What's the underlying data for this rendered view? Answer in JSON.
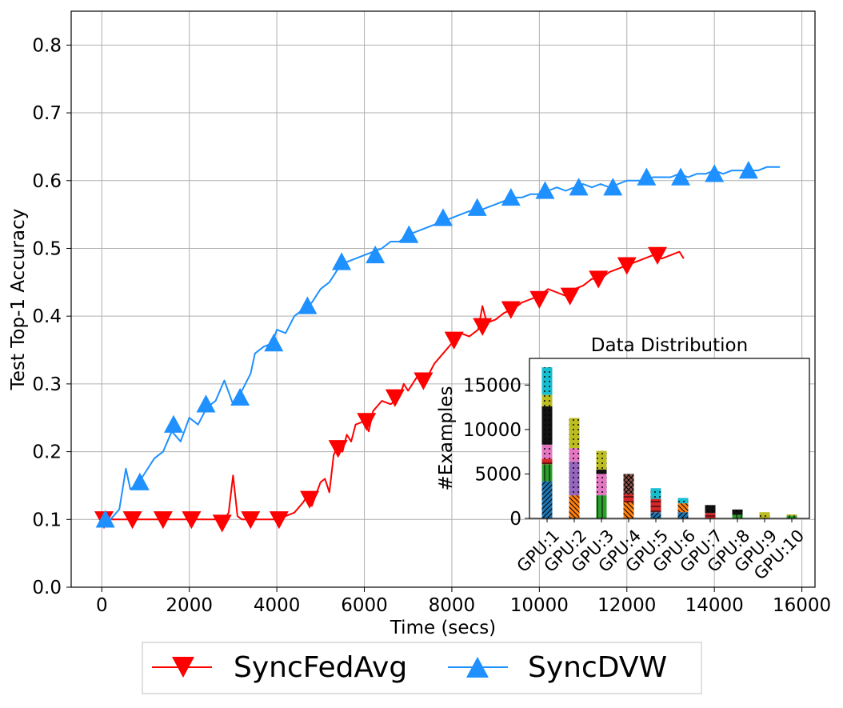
{
  "chart_data": [
    {
      "type": "line",
      "xlabel": "Time (secs)",
      "ylabel": "Test Top-1 Accuracy",
      "xlim": [
        -700,
        16300
      ],
      "ylim": [
        0.0,
        0.85
      ],
      "x_ticks": [
        0,
        2000,
        4000,
        6000,
        8000,
        10000,
        12000,
        14000,
        16000
      ],
      "x_tick_labels": [
        "0",
        "2000",
        "4000",
        "6000",
        "8000",
        "10000",
        "12000",
        "14000",
        "16000"
      ],
      "y_ticks": [
        0.0,
        0.1,
        0.2,
        0.3,
        0.4,
        0.5,
        0.6,
        0.7,
        0.8
      ],
      "y_tick_labels": [
        "0.0",
        "0.1",
        "0.2",
        "0.3",
        "0.4",
        "0.5",
        "0.6",
        "0.7",
        "0.8"
      ],
      "grid": true,
      "legend": {
        "placement": "bottom-center, outside plot"
      },
      "series": [
        {
          "name": "SyncFedAvg",
          "color": "#ff0000",
          "marker": "triangle-down",
          "line_points": [
            [
              0,
              0.1
            ],
            [
              200,
              0.1
            ],
            [
              400,
              0.1
            ],
            [
              600,
              0.1
            ],
            [
              800,
              0.1
            ],
            [
              1000,
              0.1
            ],
            [
              1200,
              0.1
            ],
            [
              1400,
              0.1
            ],
            [
              1600,
              0.1
            ],
            [
              1800,
              0.1
            ],
            [
              2000,
              0.1
            ],
            [
              2200,
              0.1
            ],
            [
              2400,
              0.1
            ],
            [
              2600,
              0.1
            ],
            [
              2800,
              0.1
            ],
            [
              2900,
              0.11
            ],
            [
              3000,
              0.165
            ],
            [
              3100,
              0.105
            ],
            [
              3200,
              0.1
            ],
            [
              3400,
              0.1
            ],
            [
              3600,
              0.1
            ],
            [
              3800,
              0.1
            ],
            [
              4000,
              0.1
            ],
            [
              4200,
              0.105
            ],
            [
              4400,
              0.11
            ],
            [
              4600,
              0.125
            ],
            [
              4700,
              0.135
            ],
            [
              4800,
              0.12
            ],
            [
              5000,
              0.155
            ],
            [
              5100,
              0.16
            ],
            [
              5200,
              0.14
            ],
            [
              5300,
              0.195
            ],
            [
              5400,
              0.21
            ],
            [
              5500,
              0.2
            ],
            [
              5600,
              0.225
            ],
            [
              5700,
              0.215
            ],
            [
              5800,
              0.24
            ],
            [
              6000,
              0.245
            ],
            [
              6100,
              0.23
            ],
            [
              6200,
              0.26
            ],
            [
              6400,
              0.275
            ],
            [
              6600,
              0.27
            ],
            [
              6800,
              0.28
            ],
            [
              6900,
              0.3
            ],
            [
              7000,
              0.29
            ],
            [
              7200,
              0.31
            ],
            [
              7400,
              0.305
            ],
            [
              7600,
              0.33
            ],
            [
              7800,
              0.345
            ],
            [
              8000,
              0.36
            ],
            [
              8200,
              0.375
            ],
            [
              8400,
              0.37
            ],
            [
              8600,
              0.38
            ],
            [
              8700,
              0.415
            ],
            [
              8800,
              0.39
            ],
            [
              9000,
              0.395
            ],
            [
              9200,
              0.405
            ],
            [
              9400,
              0.41
            ],
            [
              9600,
              0.42
            ],
            [
              9800,
              0.425
            ],
            [
              10000,
              0.43
            ],
            [
              10200,
              0.44
            ],
            [
              10400,
              0.435
            ],
            [
              10600,
              0.43
            ],
            [
              10800,
              0.44
            ],
            [
              11000,
              0.445
            ],
            [
              11200,
              0.455
            ],
            [
              11400,
              0.455
            ],
            [
              11600,
              0.465
            ],
            [
              11800,
              0.47
            ],
            [
              12000,
              0.475
            ],
            [
              12200,
              0.48
            ],
            [
              12400,
              0.485
            ],
            [
              12600,
              0.49
            ],
            [
              12800,
              0.485
            ],
            [
              13000,
              0.49
            ],
            [
              13200,
              0.495
            ],
            [
              13300,
              0.485
            ]
          ],
          "marker_points": [
            [
              50,
              0.1
            ],
            [
              700,
              0.1
            ],
            [
              1400,
              0.1
            ],
            [
              2050,
              0.1
            ],
            [
              2750,
              0.095
            ],
            [
              3400,
              0.1
            ],
            [
              4050,
              0.1
            ],
            [
              4750,
              0.13
            ],
            [
              5400,
              0.205
            ],
            [
              6050,
              0.245
            ],
            [
              6700,
              0.28
            ],
            [
              7350,
              0.305
            ],
            [
              8050,
              0.365
            ],
            [
              8700,
              0.385
            ],
            [
              9350,
              0.41
            ],
            [
              10000,
              0.425
            ],
            [
              10700,
              0.43
            ],
            [
              11350,
              0.455
            ],
            [
              12000,
              0.475
            ],
            [
              12700,
              0.49
            ]
          ]
        },
        {
          "name": "SyncDVW",
          "color": "#1e90ff",
          "marker": "triangle-up",
          "line_points": [
            [
              0,
              0.1
            ],
            [
              200,
              0.1
            ],
            [
              400,
              0.115
            ],
            [
              550,
              0.175
            ],
            [
              650,
              0.145
            ],
            [
              800,
              0.15
            ],
            [
              1000,
              0.17
            ],
            [
              1200,
              0.19
            ],
            [
              1400,
              0.2
            ],
            [
              1600,
              0.23
            ],
            [
              1800,
              0.215
            ],
            [
              2000,
              0.25
            ],
            [
              2200,
              0.24
            ],
            [
              2400,
              0.265
            ],
            [
              2600,
              0.275
            ],
            [
              2800,
              0.305
            ],
            [
              3000,
              0.27
            ],
            [
              3200,
              0.29
            ],
            [
              3400,
              0.315
            ],
            [
              3500,
              0.345
            ],
            [
              3700,
              0.355
            ],
            [
              3900,
              0.36
            ],
            [
              4000,
              0.38
            ],
            [
              4200,
              0.375
            ],
            [
              4400,
              0.4
            ],
            [
              4600,
              0.41
            ],
            [
              4800,
              0.42
            ],
            [
              5000,
              0.44
            ],
            [
              5200,
              0.45
            ],
            [
              5400,
              0.47
            ],
            [
              5600,
              0.48
            ],
            [
              5800,
              0.485
            ],
            [
              6000,
              0.49
            ],
            [
              6200,
              0.495
            ],
            [
              6400,
              0.5
            ],
            [
              6600,
              0.51
            ],
            [
              6800,
              0.51
            ],
            [
              7000,
              0.52
            ],
            [
              7200,
              0.525
            ],
            [
              7400,
              0.53
            ],
            [
              7600,
              0.535
            ],
            [
              7800,
              0.54
            ],
            [
              8000,
              0.545
            ],
            [
              8200,
              0.55
            ],
            [
              8400,
              0.555
            ],
            [
              8600,
              0.555
            ],
            [
              8800,
              0.56
            ],
            [
              9000,
              0.565
            ],
            [
              9200,
              0.57
            ],
            [
              9400,
              0.575
            ],
            [
              9600,
              0.575
            ],
            [
              9800,
              0.58
            ],
            [
              10000,
              0.58
            ],
            [
              10200,
              0.585
            ],
            [
              10400,
              0.59
            ],
            [
              10600,
              0.585
            ],
            [
              10800,
              0.59
            ],
            [
              11000,
              0.595
            ],
            [
              11200,
              0.59
            ],
            [
              11400,
              0.595
            ],
            [
              11600,
              0.59
            ],
            [
              11800,
              0.595
            ],
            [
              12000,
              0.6
            ],
            [
              12200,
              0.6
            ],
            [
              12400,
              0.6
            ],
            [
              12600,
              0.605
            ],
            [
              12800,
              0.605
            ],
            [
              13000,
              0.605
            ],
            [
              13200,
              0.61
            ],
            [
              13400,
              0.605
            ],
            [
              13600,
              0.61
            ],
            [
              13800,
              0.61
            ],
            [
              14000,
              0.615
            ],
            [
              14200,
              0.61
            ],
            [
              14400,
              0.615
            ],
            [
              14600,
              0.615
            ],
            [
              14800,
              0.615
            ],
            [
              15000,
              0.615
            ],
            [
              15200,
              0.62
            ],
            [
              15400,
              0.62
            ],
            [
              15500,
              0.62
            ]
          ],
          "marker_points": [
            [
              80,
              0.1
            ],
            [
              870,
              0.155
            ],
            [
              1640,
              0.24
            ],
            [
              2380,
              0.27
            ],
            [
              3160,
              0.28
            ],
            [
              3930,
              0.36
            ],
            [
              4700,
              0.415
            ],
            [
              5480,
              0.48
            ],
            [
              6250,
              0.49
            ],
            [
              7020,
              0.52
            ],
            [
              7800,
              0.545
            ],
            [
              8580,
              0.56
            ],
            [
              9350,
              0.575
            ],
            [
              10130,
              0.585
            ],
            [
              10900,
              0.59
            ],
            [
              11680,
              0.59
            ],
            [
              12450,
              0.605
            ],
            [
              13230,
              0.605
            ],
            [
              14000,
              0.61
            ],
            [
              14780,
              0.615
            ]
          ]
        }
      ]
    },
    {
      "type": "bar",
      "title": "Data Distribution",
      "xlabel": "",
      "ylabel": "#Examples",
      "ylim": [
        0,
        18000
      ],
      "y_ticks": [
        0,
        5000,
        10000,
        15000
      ],
      "y_tick_labels": [
        "0",
        "5000",
        "10000",
        "15000"
      ],
      "categories": [
        "GPU:1",
        "GPU:2",
        "GPU:3",
        "GPU:4",
        "GPU:5",
        "GPU:6",
        "GPU:7",
        "GPU:8",
        "GPU:9",
        "GPU:10"
      ],
      "totals": [
        17000,
        11300,
        7600,
        5000,
        3400,
        2300,
        1500,
        1000,
        700,
        450
      ],
      "segment_colors": [
        "#1f77b4",
        "#2ca02c",
        "#ff7f0e",
        "#d62728",
        "#9467bd",
        "#8c564b",
        "#e377c2",
        "#111111",
        "#bcbd22",
        "#17becf"
      ],
      "stacked_segments": [
        [
          4200,
          1900,
          0,
          600,
          0,
          0,
          1600,
          4300,
          1300,
          3100
        ],
        [
          0,
          0,
          2600,
          0,
          3800,
          0,
          1500,
          0,
          3400,
          0
        ],
        [
          0,
          2600,
          0,
          0,
          0,
          0,
          2400,
          500,
          2100,
          0
        ],
        [
          0,
          0,
          1800,
          900,
          0,
          2300,
          0,
          0,
          0,
          0
        ],
        [
          700,
          0,
          0,
          1500,
          0,
          0,
          0,
          0,
          0,
          1200
        ],
        [
          700,
          0,
          1000,
          0,
          0,
          0,
          0,
          0,
          0,
          600
        ],
        [
          0,
          0,
          0,
          600,
          0,
          0,
          0,
          900,
          0,
          0
        ],
        [
          0,
          400,
          0,
          0,
          0,
          0,
          0,
          600,
          0,
          0
        ],
        [
          0,
          0,
          0,
          0,
          0,
          0,
          0,
          0,
          700,
          0
        ],
        [
          0,
          300,
          0,
          0,
          0,
          0,
          0,
          0,
          150,
          0
        ]
      ]
    }
  ]
}
